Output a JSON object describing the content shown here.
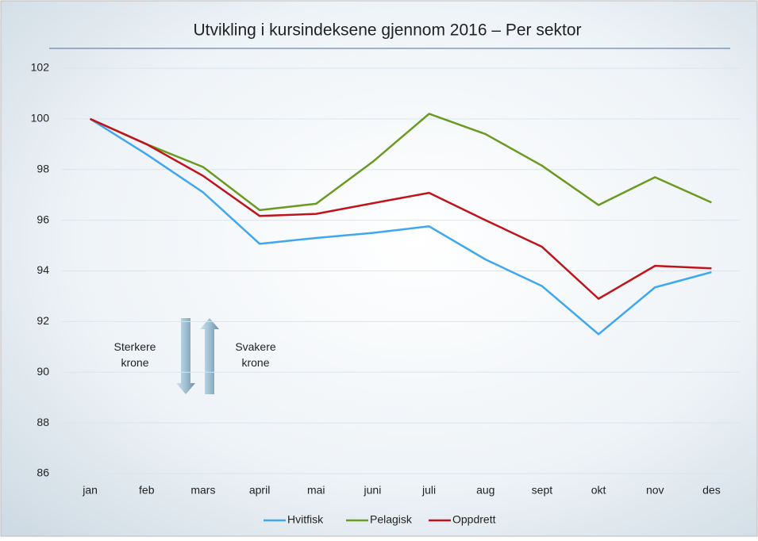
{
  "chart_data": {
    "type": "line",
    "title": "Utvikling i kursindeksene gjennom 2016 – Per sektor",
    "categories": [
      "jan",
      "feb",
      "mars",
      "april",
      "mai",
      "juni",
      "juli",
      "aug",
      "sept",
      "okt",
      "nov",
      "des"
    ],
    "series": [
      {
        "name": "Hvitfisk",
        "color": "#3fa7f0",
        "values": [
          100,
          98.6,
          97.1,
          95.07,
          95.3,
          95.5,
          95.76,
          94.45,
          93.4,
          91.5,
          93.35,
          93.95
        ]
      },
      {
        "name": "Pelagisk",
        "color": "#6a9a22",
        "values": [
          100,
          99.0,
          98.1,
          96.4,
          96.65,
          98.3,
          100.2,
          99.4,
          98.15,
          96.6,
          97.7,
          96.7
        ]
      },
      {
        "name": "Oppdrett",
        "color": "#c0141c",
        "values": [
          100,
          99.0,
          97.75,
          96.17,
          96.25,
          96.67,
          97.08,
          96.0,
          94.95,
          92.9,
          94.2,
          94.1
        ]
      }
    ],
    "ylim": [
      86,
      102
    ],
    "yticks": [
      86,
      88,
      90,
      92,
      94,
      96,
      98,
      100,
      102
    ],
    "grid": true,
    "legend": "bottom",
    "annotations": [
      [
        "Sterkere",
        "krone"
      ],
      [
        "Svakere",
        "krone"
      ]
    ]
  }
}
